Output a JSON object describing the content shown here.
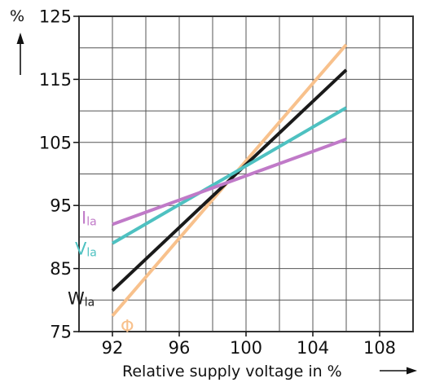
{
  "chart_data": {
    "type": "line",
    "xlabel": "Relative supply voltage in %",
    "ylabel": "%",
    "xlim": [
      90,
      110
    ],
    "ylim": [
      75,
      125
    ],
    "x_ticks": [
      92,
      96,
      100,
      104,
      108
    ],
    "y_ticks": [
      75,
      85,
      95,
      105,
      115,
      125
    ],
    "grid": true,
    "series": [
      {
        "name": "Φ",
        "name_main": "Φ",
        "name_sub": "",
        "color": "#f8c18c",
        "x": [
          92,
          106
        ],
        "y": [
          77.5,
          120.5
        ]
      },
      {
        "name": "Wla",
        "name_main": "W",
        "name_sub": "la",
        "color": "#1a1a1a",
        "x": [
          92,
          106
        ],
        "y": [
          81.5,
          116.5
        ]
      },
      {
        "name": "Vla",
        "name_main": "V",
        "name_sub": "la",
        "color": "#4ec1c1",
        "x": [
          92,
          106
        ],
        "y": [
          89,
          110.5
        ]
      },
      {
        "name": "Ila",
        "name_main": "I",
        "name_sub": "la",
        "color": "#c07ac8",
        "x": [
          92,
          106
        ],
        "y": [
          92,
          105.5
        ]
      }
    ]
  }
}
